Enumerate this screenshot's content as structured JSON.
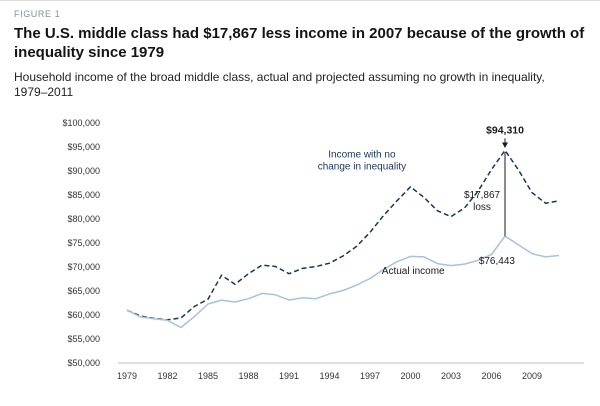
{
  "figure_label": "FIGURE 1",
  "title": "The U.S. middle class had $17,867 less income in 2007 because of the growth of inequality since 1979",
  "subtitle": "Household income of the broad middle class, actual and projected assuming no growth in inequality, 1979–2011",
  "colors": {
    "projected_line": "#17365d",
    "actual_line": "#a6c3dd",
    "annotation_navy": "#17365d",
    "annotation_dark": "#1a1a1a",
    "axis": "#c0c0c0",
    "tick_text": "#333333"
  },
  "chart_data": {
    "type": "line",
    "title": "Household income of the broad middle class, actual and projected assuming no growth in inequality, 1979-2011",
    "xlabel": "",
    "ylabel": "",
    "xlim": [
      1979,
      2011
    ],
    "ylim": [
      50000,
      100000
    ],
    "grid": false,
    "legend_position": "inline-annotations",
    "years": [
      1979,
      1980,
      1981,
      1982,
      1983,
      1984,
      1985,
      1986,
      1987,
      1988,
      1989,
      1990,
      1991,
      1992,
      1993,
      1994,
      1995,
      1996,
      1997,
      1998,
      1999,
      2000,
      2001,
      2002,
      2003,
      2004,
      2005,
      2006,
      2007,
      2008,
      2009,
      2010,
      2011
    ],
    "series": [
      {
        "id": "projected",
        "name": "Income with no change in inequality",
        "color": "#17365d",
        "dashed": true,
        "values": [
          61000,
          59800,
          59300,
          59000,
          59400,
          61800,
          63300,
          68300,
          66400,
          68600,
          70400,
          70100,
          68600,
          69700,
          70100,
          70800,
          72300,
          74300,
          77200,
          80700,
          83800,
          86700,
          84500,
          81700,
          80500,
          82300,
          85800,
          90300,
          94310,
          90200,
          85500,
          83300,
          83800
        ]
      },
      {
        "id": "actual",
        "name": "Actual income",
        "color": "#a6c3dd",
        "dashed": false,
        "values": [
          61000,
          59600,
          59200,
          58900,
          57400,
          59700,
          62300,
          63100,
          62700,
          63400,
          64500,
          64200,
          63100,
          63600,
          63400,
          64400,
          65100,
          66200,
          67600,
          69500,
          71100,
          72200,
          72100,
          70700,
          70300,
          70600,
          71400,
          72600,
          76443,
          74600,
          72800,
          72100,
          72400
        ]
      }
    ],
    "y_ticks": [
      {
        "label": "$100,000",
        "value": 100000
      },
      {
        "label": "$95,000",
        "value": 95000
      },
      {
        "label": "$90,000",
        "value": 90000
      },
      {
        "label": "$85,000",
        "value": 85000
      },
      {
        "label": "$80,000",
        "value": 80000
      },
      {
        "label": "$75,000",
        "value": 75000
      },
      {
        "label": "$70,000",
        "value": 70000
      },
      {
        "label": "$65,000",
        "value": 65000
      },
      {
        "label": "$60,000",
        "value": 60000
      },
      {
        "label": "$55,000",
        "value": 55000
      },
      {
        "label": "$50,000",
        "value": 50000
      }
    ],
    "x_ticks": [
      {
        "label": "1979",
        "value": 1979
      },
      {
        "label": "1982",
        "value": 1982
      },
      {
        "label": "1985",
        "value": 1985
      },
      {
        "label": "1988",
        "value": 1988
      },
      {
        "label": "1991",
        "value": 1991
      },
      {
        "label": "1994",
        "value": 1994
      },
      {
        "label": "1997",
        "value": 1997
      },
      {
        "label": "2000",
        "value": 2000
      },
      {
        "label": "2003",
        "value": 2003
      },
      {
        "label": "2006",
        "value": 2006
      },
      {
        "label": "2009",
        "value": 2009
      }
    ],
    "loss_connector": {
      "year": 2007,
      "from_value": 94310,
      "to_value": 76443
    },
    "peak_arrow": {
      "year": 2007,
      "from_value": 96800,
      "to_value": 94800
    },
    "annotations": [
      {
        "name": "projected-series-label",
        "lines": [
          "Income with no",
          "change in inequality"
        ],
        "year": 1996.4,
        "value": 92800,
        "anchor": "middle",
        "color": "navy",
        "size": 10
      },
      {
        "name": "peak-value-label",
        "lines": [
          "$94,310"
        ],
        "year": 2007,
        "value": 97800,
        "anchor": "middle",
        "color": "dark",
        "size": 10.5,
        "bold": true
      },
      {
        "name": "loss-label",
        "lines": [
          "$17,867",
          "loss"
        ],
        "year": 2005.3,
        "value": 84400,
        "anchor": "middle",
        "color": "dark",
        "size": 10
      },
      {
        "name": "actual-series-label",
        "lines": [
          "Actual income"
        ],
        "year": 2000.2,
        "value": 68500,
        "anchor": "middle",
        "color": "dark",
        "size": 10
      },
      {
        "name": "actual-value-label",
        "lines": [
          "$76,443"
        ],
        "year": 2006.4,
        "value": 70600,
        "anchor": "middle",
        "color": "dark",
        "size": 10
      }
    ]
  }
}
